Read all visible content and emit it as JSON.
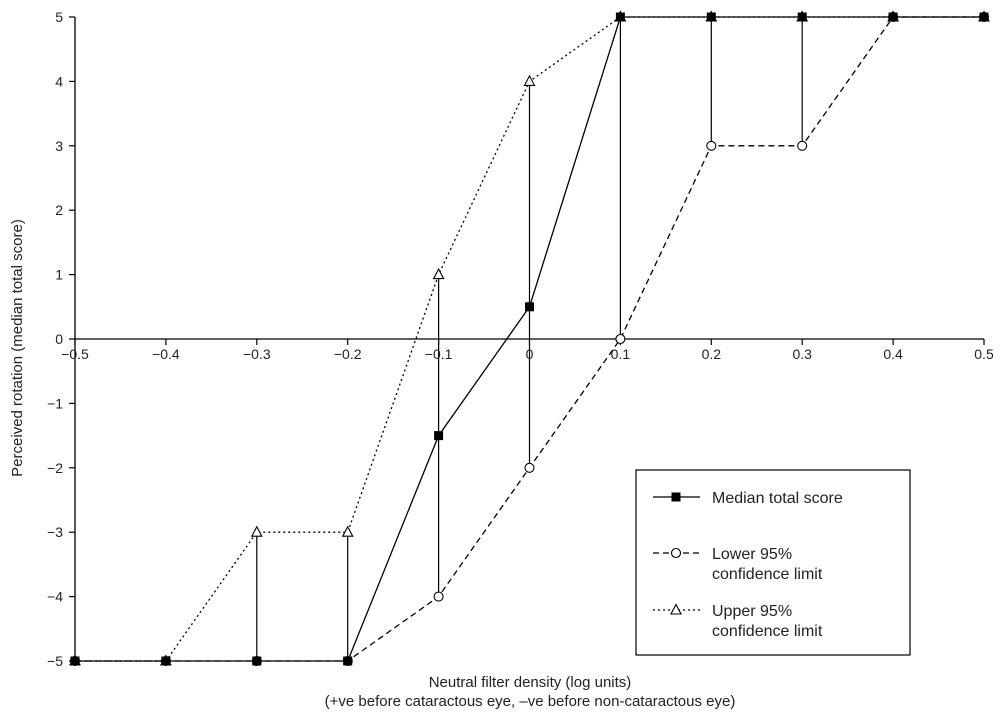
{
  "chart_data": {
    "type": "line",
    "title": "",
    "xlabel": "Neutral filter density (log units)",
    "xlabel_note": "(+ve before cataractous eye, –ve before non-cataractous eye)",
    "ylabel": "Perceived rotation (median total score)",
    "xlim": [
      -0.5,
      0.5
    ],
    "ylim": [
      -5,
      5
    ],
    "x_ticks": [
      -0.5,
      -0.4,
      -0.3,
      -0.2,
      -0.1,
      0,
      0.1,
      0.2,
      0.3,
      0.4,
      0.5
    ],
    "x_tick_labels": [
      "−0.5",
      "−0.4",
      "−0.3",
      "−0.2",
      "−0.1",
      "0",
      "0.1",
      "0.2",
      "0.3",
      "0.4",
      "0.5"
    ],
    "y_ticks": [
      -5,
      -4,
      -3,
      -2,
      -1,
      0,
      1,
      2,
      3,
      4,
      5
    ],
    "y_tick_labels": [
      "−5",
      "−4",
      "−3",
      "−2",
      "−1",
      "0",
      "1",
      "2",
      "3",
      "4",
      "5"
    ],
    "x": [
      -0.5,
      -0.4,
      -0.3,
      -0.2,
      -0.1,
      0,
      0.1,
      0.2,
      0.3,
      0.4,
      0.5
    ],
    "series": [
      {
        "name": "Median total score",
        "marker": "filled-square",
        "line_style": "solid",
        "values": [
          -5,
          -5,
          -5,
          -5,
          -1.5,
          0.5,
          5,
          5,
          5,
          5,
          5
        ]
      },
      {
        "name": "Lower 95% confidence limit",
        "marker": "open-circle",
        "line_style": "dashed",
        "values": [
          -5,
          -5,
          -5,
          -5,
          -4,
          -2,
          0,
          3,
          3,
          5,
          5
        ]
      },
      {
        "name": "Upper 95% confidence limit",
        "marker": "open-triangle",
        "line_style": "dotted",
        "values": [
          -5,
          -5,
          -3,
          -3,
          1,
          4,
          5,
          5,
          5,
          5,
          5
        ]
      }
    ],
    "legend": {
      "position": "lower-right",
      "entries": [
        "Median total score",
        "Lower 95%\nconfidence limit",
        "Upper 95%\nconfidence limit"
      ]
    },
    "grid": false,
    "confidence_bars": true
  }
}
